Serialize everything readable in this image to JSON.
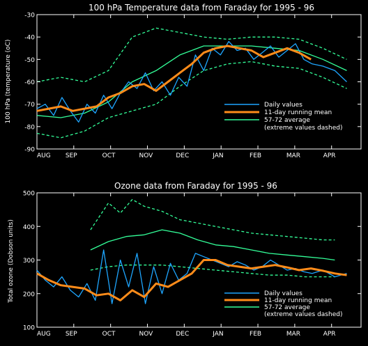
{
  "colors": {
    "background": "#000000",
    "axes": "#ffffff",
    "daily": "#1ea6ff",
    "running_mean": "#ff8c1a",
    "average": "#33ff99"
  },
  "chart_data": [
    {
      "type": "line",
      "title": "100 hPa Temperature data from Faraday for 1995 - 96",
      "xlabel": "",
      "ylabel": "100 hPa (temperature (oC)",
      "ylim": [
        -90,
        -30
      ],
      "yticks": [
        -90,
        -80,
        -70,
        -60,
        -50,
        -40,
        -30
      ],
      "xticks": [
        "AUG",
        "SEP",
        "OCT",
        "NOV",
        "DEC",
        "JAN",
        "FEB",
        "MAR",
        "APR"
      ],
      "grid": false,
      "legend": {
        "position": "right",
        "entries": [
          {
            "label": "Daily values",
            "series": "daily"
          },
          {
            "label": "11-day running mean",
            "series": "mean"
          },
          {
            "label": "57-72 average",
            "series": "avg"
          },
          {
            "label": "(extreme values dashed)",
            "series": "extremes"
          }
        ]
      },
      "series": [
        {
          "key": "daily",
          "name": "Daily values",
          "x": [
            0,
            7,
            14,
            21,
            28,
            35,
            42,
            49,
            56,
            63,
            70,
            77,
            84,
            91,
            98,
            105,
            112,
            119,
            126,
            133,
            140,
            147,
            154,
            161,
            168,
            175,
            182,
            189,
            196,
            203,
            210,
            217,
            224,
            231,
            240,
            250,
            260
          ],
          "values": [
            -72,
            -70,
            -75,
            -67,
            -73,
            -78,
            -70,
            -74,
            -66,
            -72,
            -65,
            -60,
            -63,
            -56,
            -64,
            -60,
            -66,
            -58,
            -62,
            -48,
            -55,
            -45,
            -48,
            -42,
            -46,
            -45,
            -50,
            -47,
            -44,
            -49,
            -46,
            -43,
            -50,
            -52,
            -53,
            -55,
            -60
          ]
        },
        {
          "key": "mean",
          "name": "11-day running mean",
          "x": [
            0,
            10,
            20,
            30,
            40,
            50,
            60,
            70,
            80,
            90,
            100,
            110,
            120,
            130,
            140,
            150,
            160,
            170,
            180,
            190,
            200,
            210,
            220,
            230
          ],
          "values": [
            -73,
            -72,
            -71,
            -73,
            -72,
            -71,
            -67,
            -65,
            -62,
            -61,
            -64,
            -60,
            -56,
            -52,
            -47,
            -45,
            -44,
            -45,
            -46,
            -49,
            -47,
            -45,
            -47,
            -50
          ]
        },
        {
          "key": "avg",
          "name": "57-72 average",
          "x": [
            0,
            20,
            40,
            60,
            80,
            100,
            120,
            140,
            160,
            180,
            200,
            220,
            240,
            260
          ],
          "values": [
            -75,
            -76,
            -74,
            -69,
            -60,
            -55,
            -48,
            -44,
            -44,
            -44,
            -45,
            -46,
            -50,
            -55
          ]
        },
        {
          "key": "max",
          "name": "",
          "dashed": true,
          "x": [
            0,
            20,
            40,
            60,
            80,
            100,
            120,
            140,
            160,
            180,
            200,
            220,
            240,
            260
          ],
          "values": [
            -60,
            -58,
            -60,
            -55,
            -40,
            -36,
            -38,
            -40,
            -41,
            -40,
            -40,
            -41,
            -45,
            -50
          ]
        },
        {
          "key": "min",
          "name": "",
          "dashed": true,
          "x": [
            0,
            20,
            40,
            60,
            80,
            100,
            120,
            140,
            160,
            180,
            200,
            220,
            240,
            260
          ],
          "values": [
            -83,
            -85,
            -82,
            -76,
            -73,
            -70,
            -62,
            -55,
            -52,
            -51,
            -53,
            -54,
            -58,
            -63
          ]
        }
      ]
    },
    {
      "type": "line",
      "title": "Ozone data from Faraday for 1995 - 96",
      "xlabel": "",
      "ylabel": "Total ozone (Dobson units)",
      "ylim": [
        100,
        500
      ],
      "yticks": [
        100,
        200,
        300,
        400,
        500
      ],
      "xticks": [
        "AUG",
        "SEP",
        "OCT",
        "NOV",
        "DEC",
        "JAN",
        "FEB",
        "MAR",
        "APR"
      ],
      "grid": false,
      "legend": {
        "position": "bottom-right",
        "entries": [
          {
            "label": "Daily values",
            "series": "daily"
          },
          {
            "label": "11-day running mean",
            "series": "mean"
          },
          {
            "label": "57-72 average",
            "series": "avg"
          },
          {
            "label": "(extreme values dashed)",
            "series": "extremes"
          }
        ]
      },
      "series": [
        {
          "key": "daily",
          "name": "Daily values",
          "x": [
            0,
            7,
            14,
            21,
            28,
            35,
            42,
            49,
            56,
            63,
            70,
            77,
            84,
            91,
            98,
            105,
            112,
            119,
            126,
            133,
            140,
            147,
            154,
            161,
            168,
            175,
            182,
            189,
            196,
            203,
            210,
            217,
            224,
            231,
            240,
            250,
            260
          ],
          "values": [
            270,
            240,
            220,
            250,
            210,
            190,
            230,
            180,
            330,
            170,
            300,
            220,
            320,
            170,
            280,
            200,
            290,
            240,
            260,
            320,
            310,
            300,
            290,
            280,
            295,
            285,
            270,
            280,
            300,
            285,
            270,
            275,
            265,
            260,
            270,
            250,
            260
          ]
        },
        {
          "key": "mean",
          "name": "11-day running mean",
          "x": [
            0,
            10,
            20,
            30,
            40,
            50,
            60,
            70,
            80,
            90,
            100,
            110,
            120,
            130,
            140,
            150,
            160,
            170,
            180,
            190,
            200,
            210,
            220,
            230,
            240,
            250,
            260
          ],
          "values": [
            260,
            240,
            225,
            220,
            215,
            195,
            200,
            180,
            210,
            190,
            230,
            220,
            240,
            260,
            300,
            300,
            285,
            280,
            275,
            280,
            285,
            278,
            270,
            275,
            268,
            260,
            255
          ]
        },
        {
          "key": "avg",
          "name": "57-72 average",
          "x": [
            45,
            60,
            75,
            90,
            105,
            120,
            135,
            150,
            165,
            180,
            195,
            210,
            225,
            240,
            250
          ],
          "values": [
            330,
            355,
            370,
            375,
            390,
            380,
            360,
            345,
            340,
            330,
            320,
            315,
            310,
            305,
            300
          ]
        },
        {
          "key": "max",
          "name": "",
          "dashed": true,
          "x": [
            45,
            60,
            70,
            80,
            90,
            105,
            120,
            135,
            150,
            165,
            180,
            195,
            210,
            225,
            240,
            250
          ],
          "values": [
            390,
            470,
            440,
            480,
            460,
            445,
            420,
            410,
            400,
            390,
            380,
            375,
            370,
            365,
            360,
            360
          ]
        },
        {
          "key": "min",
          "name": "",
          "dashed": true,
          "x": [
            45,
            60,
            75,
            90,
            105,
            120,
            135,
            150,
            165,
            180,
            195,
            210,
            225,
            240,
            250
          ],
          "values": [
            270,
            280,
            285,
            285,
            285,
            280,
            275,
            270,
            265,
            260,
            255,
            255,
            250,
            250,
            250
          ]
        }
      ]
    }
  ]
}
